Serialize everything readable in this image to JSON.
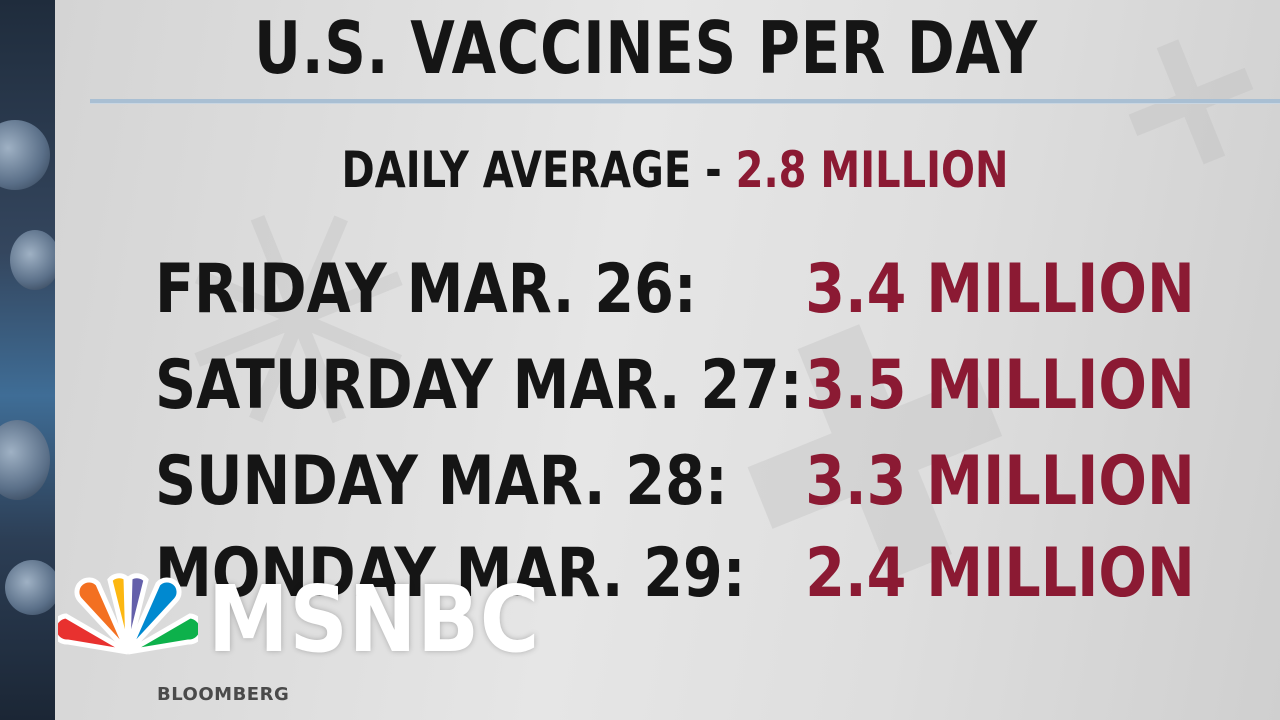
{
  "title": "U.S. VACCINES PER DAY",
  "daily_average": {
    "label": "DAILY AVERAGE - ",
    "value": "2.8 MILLION"
  },
  "rows": [
    {
      "day": "FRIDAY MAR. 26:",
      "amount": "3.4 MILLION"
    },
    {
      "day": "SATURDAY MAR. 27:",
      "amount": "3.5 MILLION"
    },
    {
      "day": "SUNDAY MAR. 28:",
      "amount": "3.3 MILLION"
    },
    {
      "day": "MONDAY MAR. 29:",
      "amount": "2.4 MILLION"
    }
  ],
  "logo": {
    "wordmark": "MSNBC",
    "icon": "nbc-peacock-icon"
  },
  "source": "BLOOMBERG",
  "colors": {
    "text": "#151515",
    "accent": "#8b1a33",
    "rule": "#a9bfd3"
  }
}
